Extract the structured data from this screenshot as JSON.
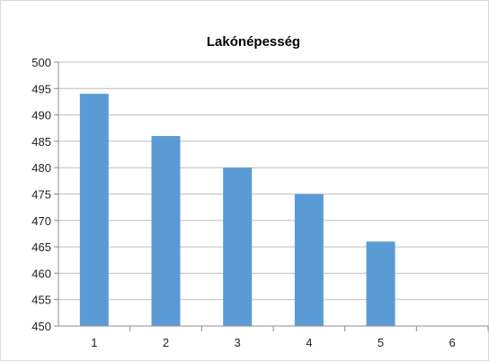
{
  "chart_data": {
    "type": "bar",
    "title": "Lakónépesség",
    "categories": [
      "1",
      "2",
      "3",
      "4",
      "5",
      "6"
    ],
    "values": [
      494,
      486,
      480,
      475,
      466,
      null
    ],
    "ylim": [
      450,
      500
    ],
    "yticks": [
      450,
      455,
      460,
      465,
      470,
      475,
      480,
      485,
      490,
      495,
      500
    ],
    "grid": true,
    "legend": "none",
    "colors": {
      "bar": "#5b9bd5",
      "grid": "#bfbfbf",
      "axis": "#8c8c8c"
    }
  }
}
